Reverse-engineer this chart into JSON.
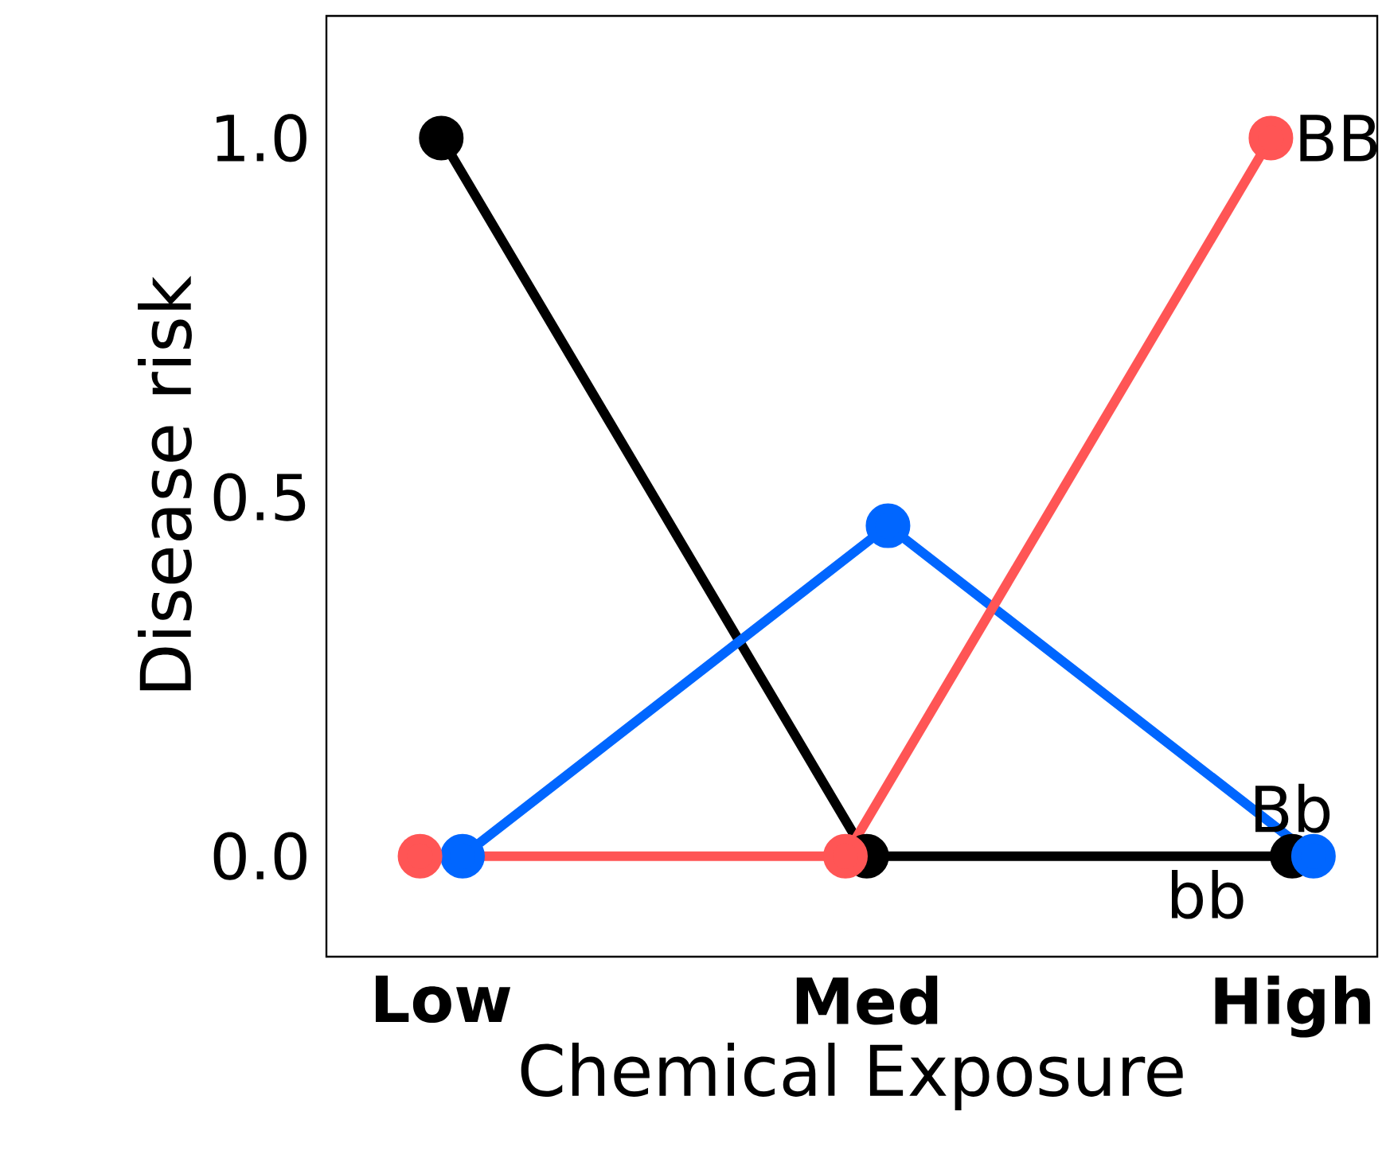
{
  "chart_data": {
    "type": "line",
    "xlabel": "Chemical Exposure",
    "ylabel": "Disease risk",
    "categories": [
      "Low",
      "Med",
      "High"
    ],
    "series": [
      {
        "name": "bb",
        "color": "#000000",
        "values": [
          1.0,
          0.0,
          0.0
        ]
      },
      {
        "name": "Bb",
        "color": "#0066ff",
        "values": [
          0.0,
          0.46,
          0.0
        ]
      },
      {
        "name": "BB",
        "color": "#ff5555",
        "values": [
          0.0,
          0.0,
          1.0
        ]
      }
    ],
    "ylim": [
      -0.14,
      1.17
    ],
    "yticks": [
      {
        "value": 0,
        "label": "0.0"
      },
      {
        "value": 0.5,
        "label": "0.5"
      },
      {
        "value": 1,
        "label": "1.0"
      }
    ],
    "marker": "circle",
    "line_style": "solid",
    "legend": "right",
    "grid": false
  }
}
